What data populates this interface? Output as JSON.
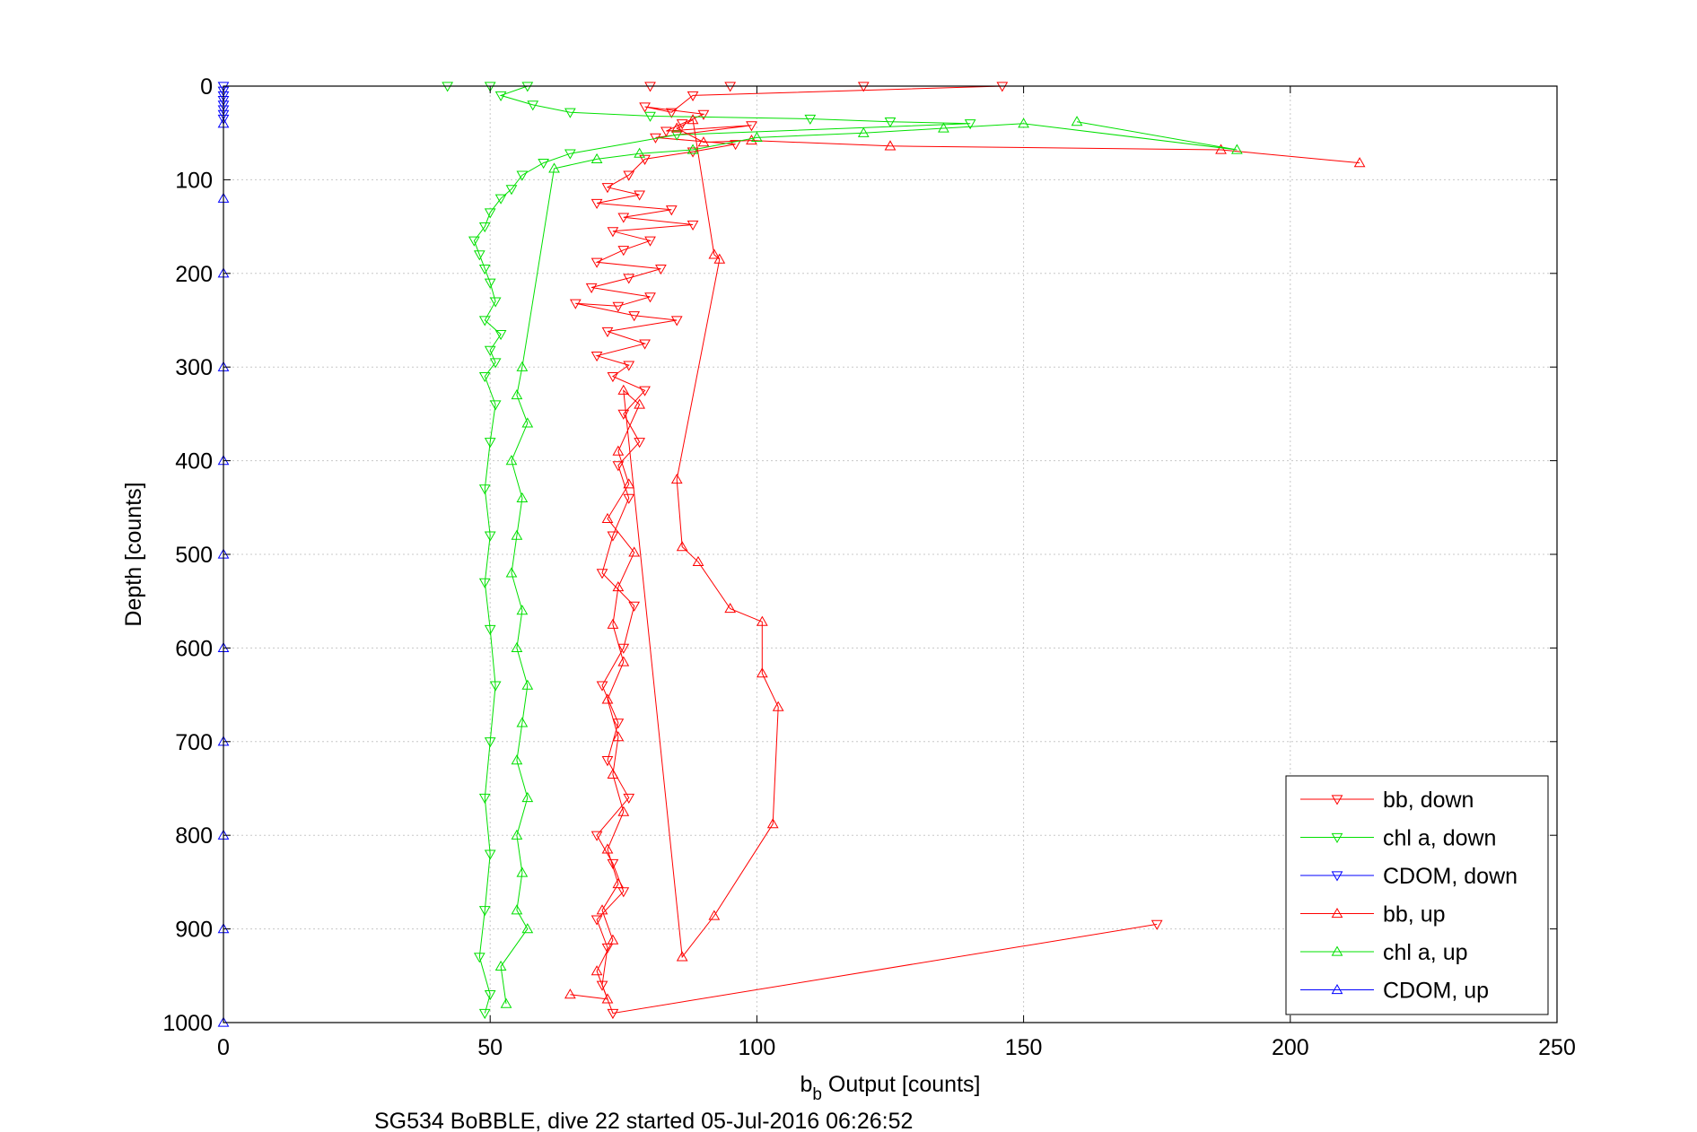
{
  "chart_data": {
    "type": "scatter",
    "xlabel": {
      "main": "b",
      "sub": "b",
      "rest": " Output [counts]"
    },
    "ylabel": "Depth [counts]",
    "caption": "SG534 BoBBLE, dive 22 started 05-Jul-2016 06:26:52",
    "xlim": [
      0,
      250
    ],
    "ylim": [
      0,
      1000
    ],
    "y_reversed": true,
    "xticks": [
      "0",
      "50",
      "100",
      "150",
      "200",
      "250"
    ],
    "yticks": [
      "0",
      "100",
      "200",
      "300",
      "400",
      "500",
      "600",
      "700",
      "800",
      "900",
      "1000"
    ],
    "grid": true,
    "legend_position": "bottom-right",
    "series": [
      {
        "name": "bb, down",
        "color": "#ff0000",
        "marker": "triangle-down",
        "points": [
          [
            80,
            0
          ],
          [
            95,
            0
          ],
          [
            120,
            0
          ],
          [
            146,
            0
          ],
          [
            88,
            10
          ],
          [
            84,
            28
          ],
          [
            79,
            22
          ],
          [
            90,
            30
          ],
          [
            86,
            40
          ],
          [
            83,
            48
          ],
          [
            99,
            42
          ],
          [
            81,
            55
          ],
          [
            96,
            62
          ],
          [
            88,
            70
          ],
          [
            79,
            78
          ],
          [
            76,
            95
          ],
          [
            72,
            108
          ],
          [
            78,
            116
          ],
          [
            70,
            125
          ],
          [
            84,
            132
          ],
          [
            75,
            140
          ],
          [
            88,
            148
          ],
          [
            73,
            155
          ],
          [
            80,
            165
          ],
          [
            75,
            175
          ],
          [
            70,
            188
          ],
          [
            82,
            195
          ],
          [
            76,
            205
          ],
          [
            69,
            215
          ],
          [
            80,
            225
          ],
          [
            74,
            235
          ],
          [
            66,
            232
          ],
          [
            77,
            245
          ],
          [
            85,
            250
          ],
          [
            72,
            262
          ],
          [
            79,
            275
          ],
          [
            70,
            288
          ],
          [
            76,
            298
          ],
          [
            73,
            310
          ],
          [
            79,
            325
          ],
          [
            75,
            350
          ],
          [
            78,
            380
          ],
          [
            74,
            405
          ],
          [
            76,
            440
          ],
          [
            73,
            480
          ],
          [
            71,
            520
          ],
          [
            77,
            555
          ],
          [
            75,
            600
          ],
          [
            71,
            640
          ],
          [
            74,
            680
          ],
          [
            72,
            720
          ],
          [
            76,
            760
          ],
          [
            70,
            800
          ],
          [
            73,
            830
          ],
          [
            75,
            860
          ],
          [
            70,
            890
          ],
          [
            72,
            920
          ],
          [
            71,
            960
          ],
          [
            73,
            990
          ],
          [
            175,
            895
          ]
        ]
      },
      {
        "name": "chl a, down",
        "color": "#00e000",
        "marker": "triangle-down",
        "points": [
          [
            42,
            0
          ],
          [
            50,
            0
          ],
          [
            57,
            0
          ],
          [
            52,
            10
          ],
          [
            58,
            20
          ],
          [
            65,
            28
          ],
          [
            80,
            32
          ],
          [
            110,
            35
          ],
          [
            125,
            38
          ],
          [
            140,
            40
          ],
          [
            85,
            52
          ],
          [
            65,
            72
          ],
          [
            60,
            82
          ],
          [
            56,
            95
          ],
          [
            54,
            110
          ],
          [
            52,
            120
          ],
          [
            50,
            135
          ],
          [
            49,
            150
          ],
          [
            47,
            165
          ],
          [
            48,
            180
          ],
          [
            49,
            195
          ],
          [
            50,
            210
          ],
          [
            51,
            230
          ],
          [
            49,
            250
          ],
          [
            52,
            265
          ],
          [
            50,
            282
          ],
          [
            51,
            295
          ],
          [
            49,
            310
          ],
          [
            51,
            340
          ],
          [
            50,
            380
          ],
          [
            49,
            430
          ],
          [
            50,
            480
          ],
          [
            49,
            530
          ],
          [
            50,
            580
          ],
          [
            51,
            640
          ],
          [
            50,
            700
          ],
          [
            49,
            760
          ],
          [
            50,
            820
          ],
          [
            49,
            880
          ],
          [
            48,
            930
          ],
          [
            50,
            970
          ],
          [
            49,
            990
          ]
        ]
      },
      {
        "name": "CDOM, down",
        "color": "#0000ff",
        "marker": "triangle-down",
        "points": [
          [
            0,
            0
          ],
          [
            0,
            5
          ],
          [
            0,
            10
          ],
          [
            0,
            15
          ],
          [
            0,
            20
          ],
          [
            0,
            25
          ],
          [
            0,
            30
          ],
          [
            0,
            35
          ]
        ]
      },
      {
        "name": "bb, up",
        "color": "#ff0000",
        "marker": "triangle-up",
        "points": [
          [
            213,
            82
          ],
          [
            187,
            68
          ],
          [
            125,
            64
          ],
          [
            99,
            58
          ],
          [
            90,
            60
          ],
          [
            85,
            45
          ],
          [
            88,
            36
          ],
          [
            92,
            180
          ],
          [
            93,
            185
          ],
          [
            85,
            420
          ],
          [
            86,
            492
          ],
          [
            89,
            508
          ],
          [
            95,
            558
          ],
          [
            101,
            572
          ],
          [
            101,
            627
          ],
          [
            104,
            663
          ],
          [
            103,
            788
          ],
          [
            92,
            886
          ],
          [
            86,
            930
          ],
          [
            75,
            325
          ],
          [
            78,
            340
          ],
          [
            74,
            390
          ],
          [
            76,
            425
          ],
          [
            72,
            462
          ],
          [
            77,
            498
          ],
          [
            74,
            535
          ],
          [
            73,
            575
          ],
          [
            75,
            615
          ],
          [
            72,
            655
          ],
          [
            74,
            695
          ],
          [
            73,
            735
          ],
          [
            75,
            775
          ],
          [
            72,
            815
          ],
          [
            74,
            852
          ],
          [
            71,
            880
          ],
          [
            73,
            912
          ],
          [
            70,
            945
          ],
          [
            72,
            975
          ],
          [
            65,
            970
          ]
        ]
      },
      {
        "name": "chl a, up",
        "color": "#00e000",
        "marker": "triangle-up",
        "points": [
          [
            160,
            38
          ],
          [
            190,
            68
          ],
          [
            150,
            40
          ],
          [
            135,
            45
          ],
          [
            120,
            50
          ],
          [
            100,
            55
          ],
          [
            88,
            68
          ],
          [
            78,
            72
          ],
          [
            70,
            78
          ],
          [
            62,
            88
          ],
          [
            56,
            300
          ],
          [
            55,
            330
          ],
          [
            57,
            360
          ],
          [
            54,
            400
          ],
          [
            56,
            440
          ],
          [
            55,
            480
          ],
          [
            54,
            520
          ],
          [
            56,
            560
          ],
          [
            55,
            600
          ],
          [
            57,
            640
          ],
          [
            56,
            680
          ],
          [
            55,
            720
          ],
          [
            57,
            760
          ],
          [
            55,
            800
          ],
          [
            56,
            840
          ],
          [
            55,
            880
          ],
          [
            57,
            900
          ],
          [
            52,
            940
          ],
          [
            53,
            980
          ]
        ]
      },
      {
        "name": "CDOM, up",
        "color": "#0000ff",
        "marker": "triangle-up",
        "points": [
          [
            0,
            40
          ],
          [
            0,
            120
          ],
          [
            0,
            200
          ],
          [
            0,
            300
          ],
          [
            0,
            400
          ],
          [
            0,
            500
          ],
          [
            0,
            600
          ],
          [
            0,
            700
          ],
          [
            0,
            800
          ],
          [
            0,
            900
          ],
          [
            0,
            1000
          ]
        ]
      }
    ]
  }
}
